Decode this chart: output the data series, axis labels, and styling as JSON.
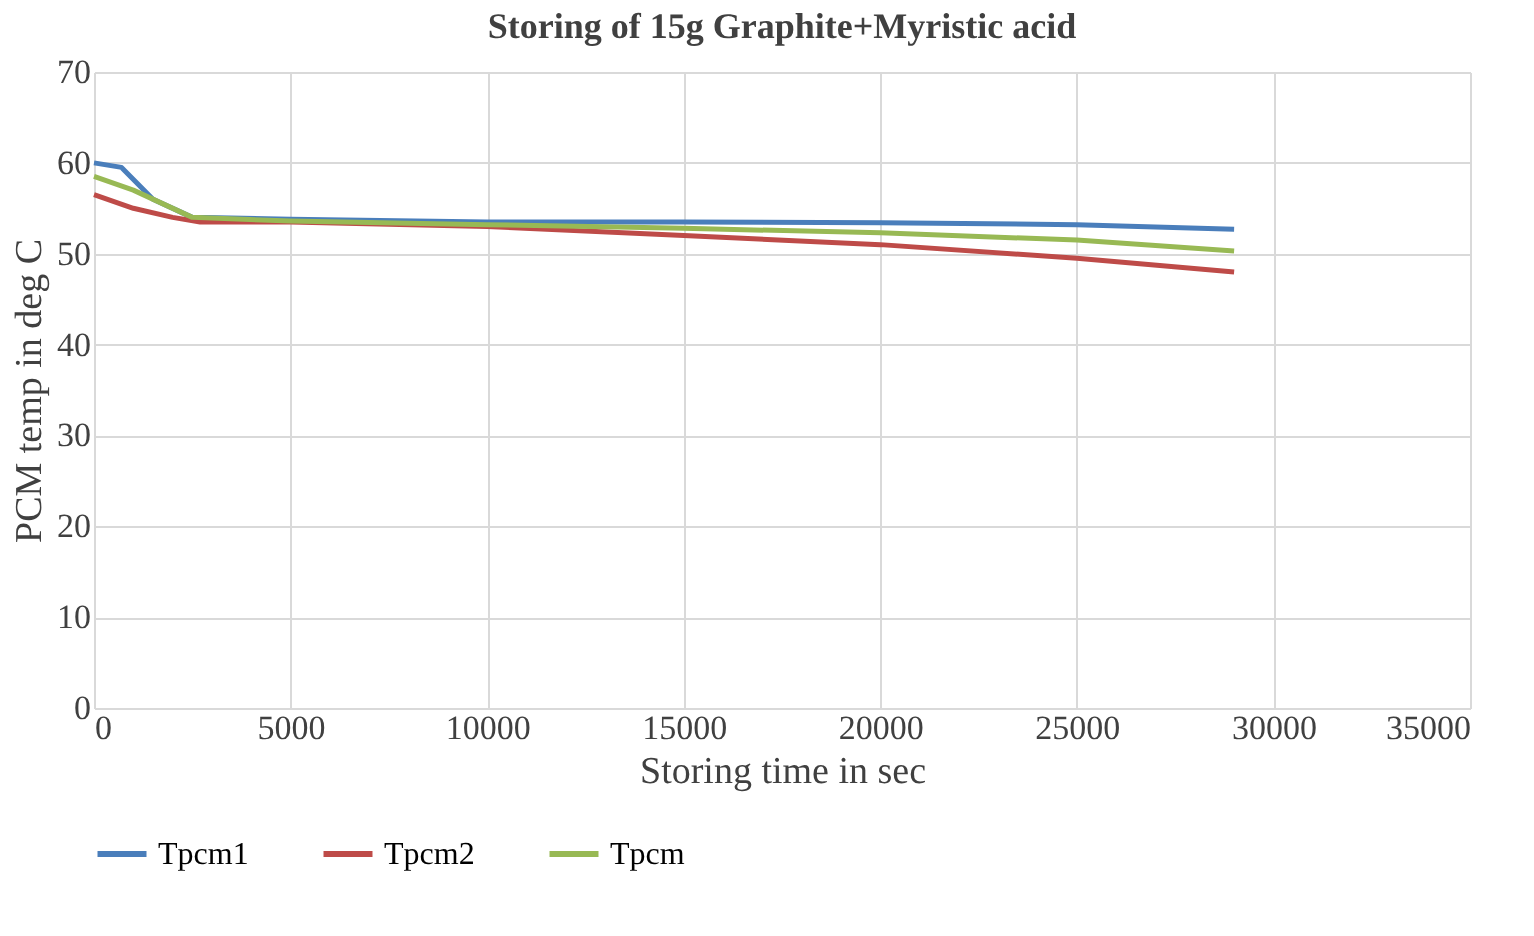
{
  "chart_data": {
    "type": "line",
    "title": "Storing of 15g Graphite+Myristic acid",
    "xlabel": "Storing time in sec",
    "ylabel": "PCM temp in deg C",
    "xlim": [
      0,
      35000
    ],
    "xticks": [
      0,
      5000,
      10000,
      15000,
      20000,
      25000,
      30000,
      35000
    ],
    "ylim": [
      0,
      70
    ],
    "yticks": [
      0,
      10,
      20,
      30,
      40,
      50,
      60,
      70
    ],
    "grid": true,
    "legend": "bottom",
    "marker": "none",
    "line_style": "solid",
    "series": [
      {
        "name": "Tpcm1",
        "color": "#4a7ebb",
        "x": [
          0,
          700,
          1500,
          2500,
          5000,
          10000,
          15000,
          20000,
          25000,
          29000
        ],
        "values": [
          60,
          59.5,
          56,
          54,
          53.8,
          53.5,
          53.5,
          53.4,
          53.2,
          52.7
        ]
      },
      {
        "name": "Tpcm2",
        "color": "#be4b48",
        "x": [
          0,
          1000,
          2000,
          2700,
          5000,
          10000,
          15000,
          20000,
          25000,
          29000
        ],
        "values": [
          56.5,
          55,
          54,
          53.5,
          53.5,
          53,
          52,
          51,
          49.5,
          48
        ]
      },
      {
        "name": "Tpcm",
        "color": "#98b954",
        "x": [
          0,
          1000,
          2500,
          5000,
          10000,
          15000,
          20000,
          25000,
          29000
        ],
        "values": [
          58.5,
          57,
          54,
          53.6,
          53.2,
          52.8,
          52.3,
          51.5,
          50.3
        ]
      }
    ]
  }
}
